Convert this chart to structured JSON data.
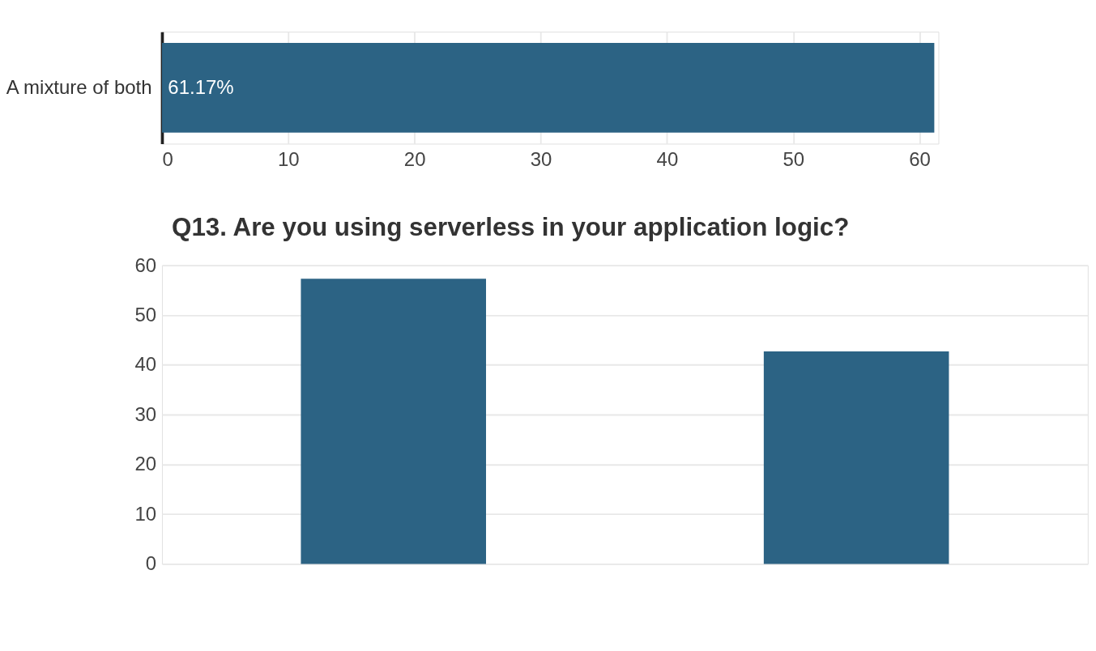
{
  "chart_data": [
    {
      "type": "bar",
      "orientation": "horizontal",
      "categories": [
        "A mixture of both"
      ],
      "values": [
        61.17
      ],
      "value_labels": [
        "61.17%"
      ],
      "color": "#2c6384",
      "xlim": [
        0,
        61.5
      ],
      "xticks": [
        0,
        10,
        20,
        30,
        40,
        50,
        60
      ],
      "grid": "x"
    },
    {
      "type": "bar",
      "title": "Q13. Are you using serverless in your application logic?",
      "categories": [
        null,
        null
      ],
      "values": [
        57.3,
        42.7
      ],
      "color": "#2c6384",
      "ylim": [
        0,
        60
      ],
      "yticks": [
        0,
        10,
        20,
        30,
        40,
        50,
        60
      ],
      "grid": "y",
      "tick_labels": "y"
    }
  ]
}
